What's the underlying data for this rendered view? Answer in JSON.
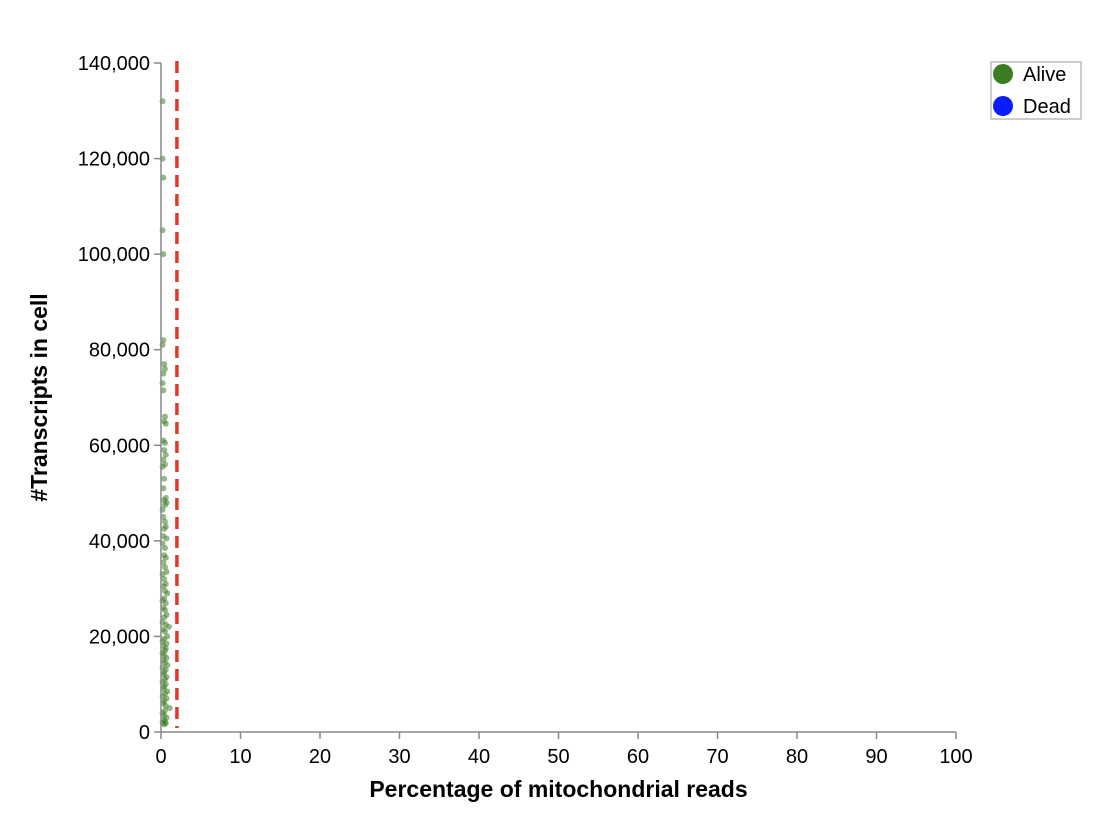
{
  "chart_data": {
    "type": "scatter",
    "xlabel": "Percentage of mitochondrial reads",
    "ylabel": "#Transcripts in cell",
    "xlim": [
      0,
      100
    ],
    "ylim": [
      0,
      140000
    ],
    "x_ticks": [
      0,
      10,
      20,
      30,
      40,
      50,
      60,
      70,
      80,
      90,
      100
    ],
    "y_ticks": [
      0,
      20000,
      40000,
      60000,
      80000,
      100000,
      120000,
      140000
    ],
    "x_tick_labels": [
      "0",
      "10",
      "20",
      "30",
      "40",
      "50",
      "60",
      "70",
      "80",
      "90",
      "100"
    ],
    "y_tick_labels": [
      "0",
      "20,000",
      "40,000",
      "60,000",
      "80,000",
      "100,000",
      "120,000",
      "140,000"
    ],
    "threshold": {
      "x": 2,
      "color": "#e03a2f",
      "style": "dashed"
    },
    "grid": false,
    "legend_position": "top-right",
    "legend": [
      {
        "label": "Alive",
        "color": "#3b7d23"
      },
      {
        "label": "Dead",
        "color": "#0a1cff"
      }
    ],
    "series": [
      {
        "name": "Alive",
        "color": "#3b7d23",
        "points": [
          [
            0.2,
            132000
          ],
          [
            0.2,
            120000
          ],
          [
            0.3,
            116000
          ],
          [
            0.2,
            105000
          ],
          [
            0.3,
            100000
          ],
          [
            0.3,
            82000
          ],
          [
            0.2,
            81000
          ],
          [
            0.4,
            77000
          ],
          [
            0.5,
            76000
          ],
          [
            0.3,
            75000
          ],
          [
            0.2,
            73000
          ],
          [
            0.3,
            71500
          ],
          [
            0.5,
            66000
          ],
          [
            0.4,
            65000
          ],
          [
            0.6,
            64500
          ],
          [
            0.3,
            61000
          ],
          [
            0.5,
            60500
          ],
          [
            0.4,
            59000
          ],
          [
            0.6,
            58000
          ],
          [
            0.3,
            57000
          ],
          [
            0.5,
            56000
          ],
          [
            0.2,
            55500
          ],
          [
            0.4,
            53000
          ],
          [
            0.3,
            51000
          ],
          [
            0.6,
            49000
          ],
          [
            0.4,
            48500
          ],
          [
            0.7,
            48000
          ],
          [
            0.5,
            47500
          ],
          [
            0.2,
            46500
          ],
          [
            0.3,
            45000
          ],
          [
            0.5,
            44000
          ],
          [
            0.6,
            43000
          ],
          [
            0.4,
            42500
          ],
          [
            0.3,
            41000
          ],
          [
            0.7,
            40500
          ],
          [
            0.2,
            39500
          ],
          [
            0.5,
            38500
          ],
          [
            0.4,
            37000
          ],
          [
            0.6,
            36500
          ],
          [
            0.3,
            35500
          ],
          [
            0.5,
            34500
          ],
          [
            0.7,
            33500
          ],
          [
            0.2,
            33000
          ],
          [
            0.4,
            32000
          ],
          [
            0.6,
            31000
          ],
          [
            0.3,
            30500
          ],
          [
            0.5,
            29500
          ],
          [
            0.8,
            29000
          ],
          [
            0.4,
            28000
          ],
          [
            0.2,
            27500
          ],
          [
            0.6,
            27000
          ],
          [
            0.3,
            26000
          ],
          [
            0.5,
            25500
          ],
          [
            0.7,
            24500
          ],
          [
            0.4,
            24000
          ],
          [
            0.2,
            23000
          ],
          [
            0.6,
            22500
          ],
          [
            1.0,
            22000
          ],
          [
            0.3,
            21500
          ],
          [
            0.5,
            21000
          ],
          [
            0.8,
            20000
          ],
          [
            0.4,
            19500
          ],
          [
            0.2,
            19000
          ],
          [
            0.7,
            18500
          ],
          [
            0.3,
            18000
          ],
          [
            0.6,
            17500
          ],
          [
            0.5,
            17000
          ],
          [
            0.2,
            16500
          ],
          [
            0.4,
            16000
          ],
          [
            0.7,
            15500
          ],
          [
            0.3,
            15000
          ],
          [
            0.5,
            14500
          ],
          [
            0.8,
            14000
          ],
          [
            0.2,
            13500
          ],
          [
            0.6,
            13000
          ],
          [
            0.4,
            12500
          ],
          [
            0.3,
            12000
          ],
          [
            0.7,
            11500
          ],
          [
            0.5,
            11000
          ],
          [
            0.2,
            10500
          ],
          [
            0.6,
            10000
          ],
          [
            0.4,
            9500
          ],
          [
            0.3,
            9000
          ],
          [
            0.8,
            8500
          ],
          [
            0.5,
            8000
          ],
          [
            0.2,
            7500
          ],
          [
            0.7,
            7000
          ],
          [
            0.4,
            6500
          ],
          [
            0.3,
            6000
          ],
          [
            0.6,
            5500
          ],
          [
            1.1,
            5000
          ],
          [
            0.5,
            4500
          ],
          [
            0.2,
            4000
          ],
          [
            0.4,
            3500
          ],
          [
            0.7,
            3000
          ],
          [
            0.3,
            2500
          ],
          [
            0.5,
            2200
          ],
          [
            0.2,
            2000
          ],
          [
            0.6,
            1800
          ],
          [
            0.4,
            1600
          ]
        ]
      },
      {
        "name": "Dead",
        "color": "#0a1cff",
        "points": []
      }
    ]
  }
}
